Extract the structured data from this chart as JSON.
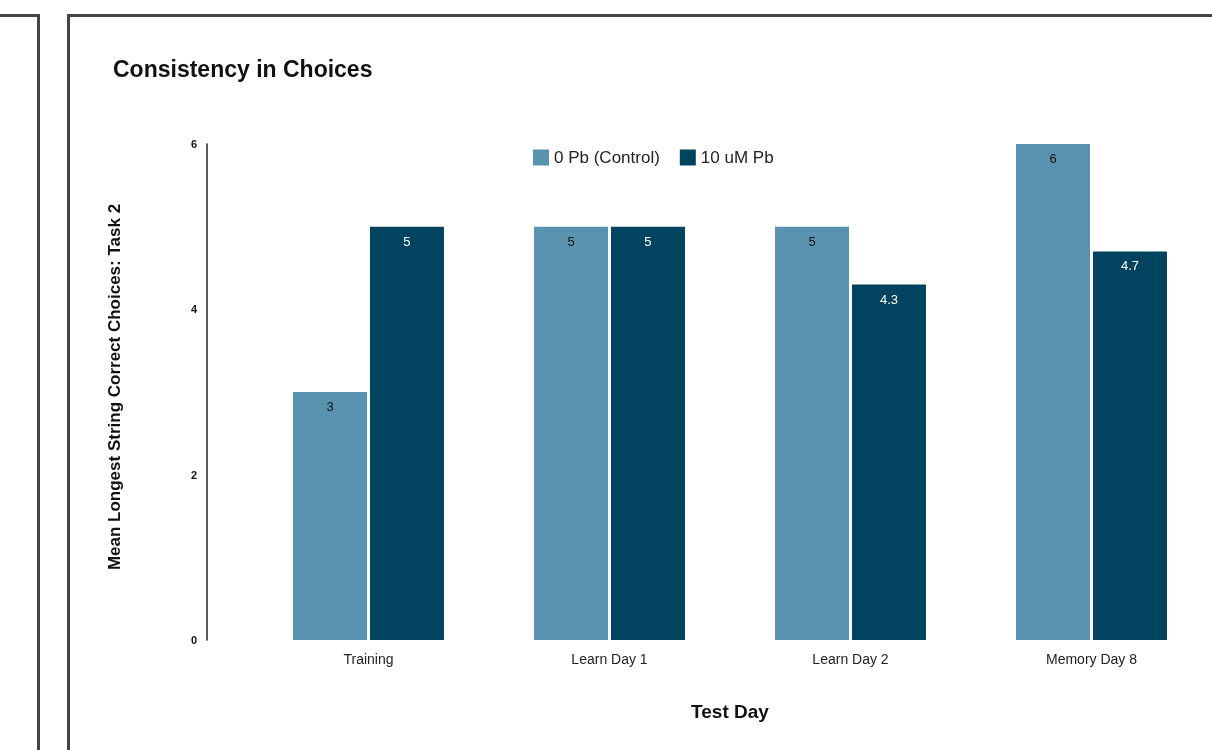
{
  "chart_data": {
    "type": "bar",
    "title": "Consistency in Choices",
    "xlabel": "Test Day",
    "ylabel": "Mean Longest String Correct Choices: Task 2",
    "categories": [
      "Training",
      "Learn Day 1",
      "Learn Day 2",
      "Memory Day 8"
    ],
    "series": [
      {
        "name": "0 Pb (Control)",
        "color": "#5993b0",
        "values": [
          3,
          5,
          5,
          6
        ]
      },
      {
        "name": "10 uM Pb",
        "color": "#02445f",
        "values": [
          5,
          5,
          4.3,
          4.7
        ]
      }
    ],
    "ylim": [
      0,
      6
    ],
    "yticks": [
      0,
      2,
      4,
      6
    ],
    "grid": false,
    "legend": "top",
    "data_labels": true
  }
}
